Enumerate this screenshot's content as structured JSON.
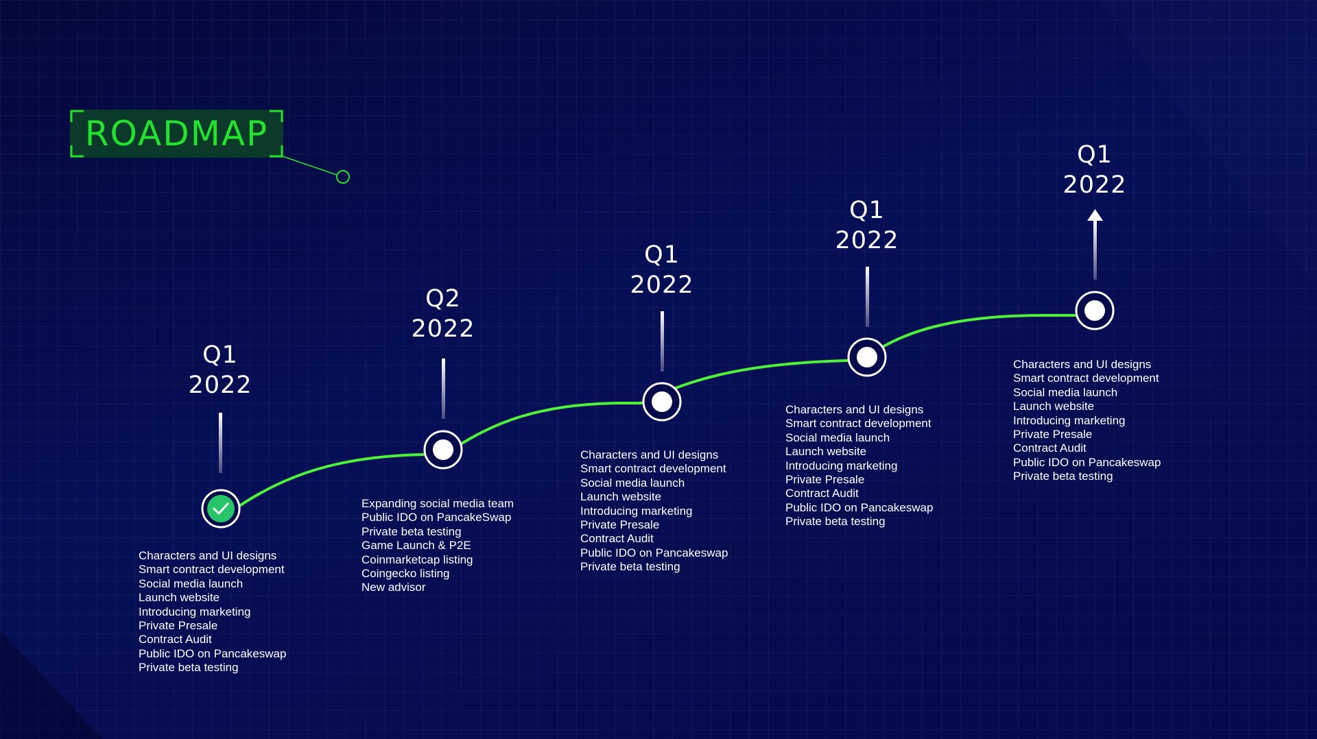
{
  "title": "ROADMAP",
  "colors": {
    "background": "#050b4a",
    "accent_green": "#22e22e",
    "line_green": "#4ff23a",
    "check_green": "#27c46a",
    "text": "#ffffff"
  },
  "milestones": [
    {
      "quarter": "Q1",
      "year": "2022",
      "status": "completed",
      "marker_icon": "check-icon",
      "items": [
        "Characters and UI designs",
        "Smart contract development",
        "Social media launch",
        "Launch website",
        "Introducing marketing",
        "Private Presale",
        "Contract Audit",
        "Public IDO on Pancakeswap",
        "Private beta testing"
      ]
    },
    {
      "quarter": "Q2",
      "year": "2022",
      "status": "upcoming",
      "marker_icon": "dot-icon",
      "items": [
        "Expanding social media team",
        "Public IDO on PancakeSwap",
        "Private beta testing",
        "Game Launch & P2E",
        "Coinmarketcap listing",
        "Coingecko listing",
        "New advisor"
      ]
    },
    {
      "quarter": "Q1",
      "year": "2022",
      "status": "upcoming",
      "marker_icon": "dot-icon",
      "items": [
        "Characters and UI designs",
        "Smart contract development",
        "Social media launch",
        "Launch website",
        "Introducing marketing",
        "Private Presale",
        "Contract Audit",
        "Public IDO on Pancakeswap",
        "Private beta testing"
      ]
    },
    {
      "quarter": "Q1",
      "year": "2022",
      "status": "upcoming",
      "marker_icon": "dot-icon",
      "items": [
        "Characters and UI designs",
        "Smart contract development",
        "Social media launch",
        "Launch website",
        "Introducing marketing",
        "Private Presale",
        "Contract Audit",
        "Public IDO on Pancakeswap",
        "Private beta testing"
      ]
    },
    {
      "quarter": "Q1",
      "year": "2022",
      "status": "upcoming",
      "marker_icon": "dot-icon",
      "connector_icon": "arrow-up-icon",
      "items": [
        "Characters and UI designs",
        "Smart contract development",
        "Social media launch",
        "Launch website",
        "Introducing marketing",
        "Private Presale",
        "Contract Audit",
        "Public IDO on Pancakeswap",
        "Private beta testing"
      ]
    }
  ]
}
